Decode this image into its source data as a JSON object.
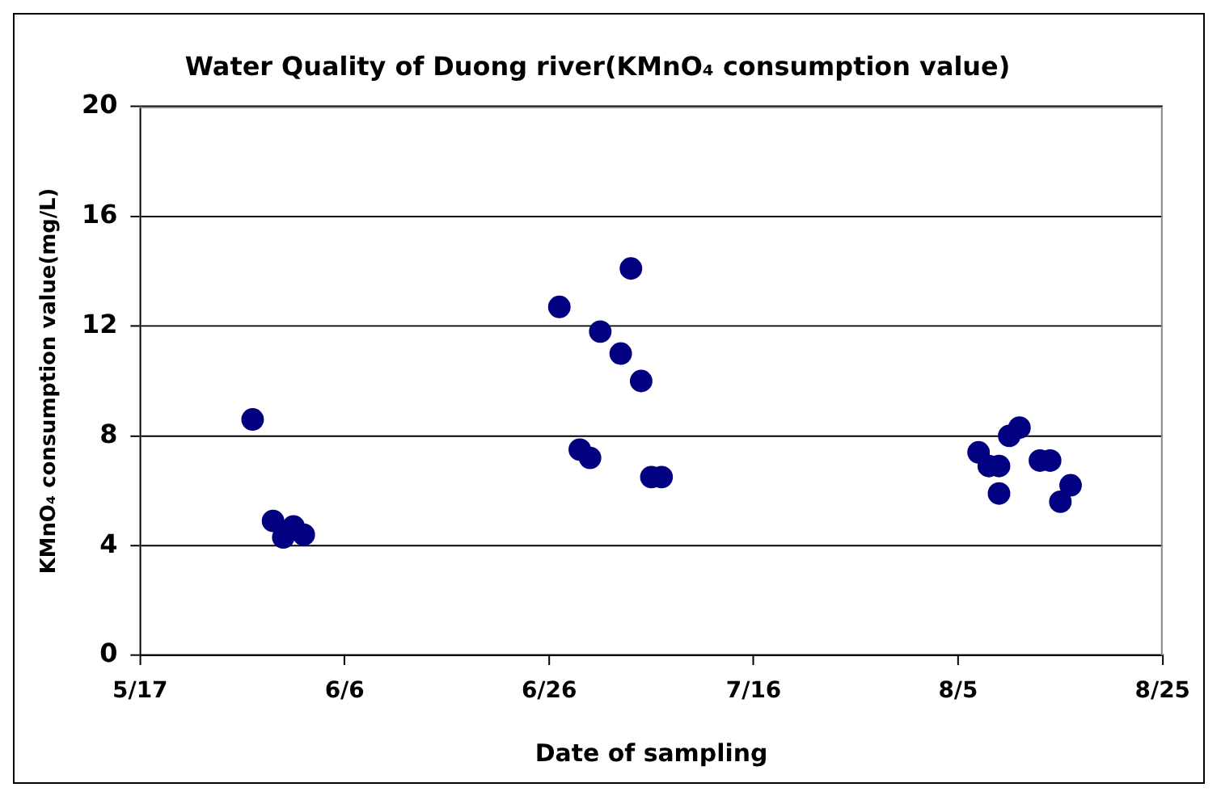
{
  "chart_data": {
    "type": "scatter",
    "title": "Water Quality of Duong river(KMnO₄ consumption value)",
    "xlabel": "Date of sampling",
    "ylabel": "KMnO₄ consumption value(mg/L)",
    "x": [
      "--05-28",
      "--05-30",
      "--05-31",
      "--06-01",
      "--06-02",
      "--06-27",
      "--06-29",
      "--06-30",
      "--07-01",
      "--07-03",
      "--07-04",
      "--07-05",
      "--07-06",
      "--07-07",
      "--08-07",
      "--08-08",
      "--08-09",
      "--08-09",
      "--08-10",
      "--08-11",
      "--08-13",
      "--08-14",
      "--08-15",
      "--08-16"
    ],
    "series": [
      {
        "color": "#000080",
        "values": [
          8.6,
          4.9,
          4.3,
          4.7,
          4.4,
          12.7,
          7.5,
          7.2,
          11.8,
          11.0,
          14.1,
          10.0,
          6.5,
          6.5,
          7.4,
          6.9,
          6.9,
          5.9,
          8.0,
          8.3,
          7.1,
          7.1,
          5.6,
          6.2
        ]
      }
    ],
    "xlim": [
      "--05-17",
      "--08-25"
    ],
    "xticks": [
      {
        "value": "--05-17",
        "label": "5/17"
      },
      {
        "value": "--06-06",
        "label": "6/6"
      },
      {
        "value": "--06-26",
        "label": "6/26"
      },
      {
        "value": "--07-16",
        "label": "7/16"
      },
      {
        "value": "--08-05",
        "label": "8/5"
      },
      {
        "value": "--08-25",
        "label": "8/25"
      }
    ],
    "ylim": [
      0,
      20
    ],
    "yticks": [
      0,
      4,
      8,
      12,
      16,
      20
    ],
    "grid": "y",
    "legend": false,
    "marker": "circle"
  }
}
